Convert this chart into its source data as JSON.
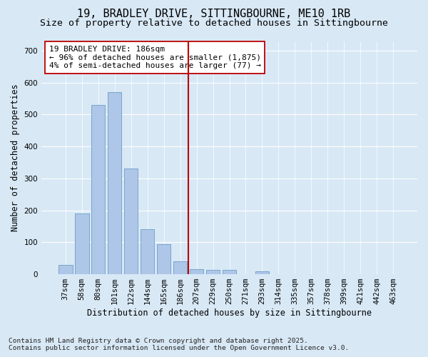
{
  "title_line1": "19, BRADLEY DRIVE, SITTINGBOURNE, ME10 1RB",
  "title_line2": "Size of property relative to detached houses in Sittingbourne",
  "xlabel": "Distribution of detached houses by size in Sittingbourne",
  "ylabel": "Number of detached properties",
  "bar_labels": [
    "37sqm",
    "58sqm",
    "80sqm",
    "101sqm",
    "122sqm",
    "144sqm",
    "165sqm",
    "186sqm",
    "207sqm",
    "229sqm",
    "250sqm",
    "271sqm",
    "293sqm",
    "314sqm",
    "335sqm",
    "357sqm",
    "378sqm",
    "399sqm",
    "421sqm",
    "442sqm",
    "463sqm"
  ],
  "bar_values": [
    30,
    190,
    530,
    570,
    330,
    140,
    95,
    40,
    15,
    14,
    14,
    0,
    10,
    0,
    0,
    0,
    0,
    0,
    0,
    0,
    0
  ],
  "bar_color": "#aec6e8",
  "bar_edge_color": "#6a9fc8",
  "reference_bar_index": 7,
  "reference_line_color": "#bb0000",
  "annotation_line1": "19 BRADLEY DRIVE: 186sqm",
  "annotation_line2": "← 96% of detached houses are smaller (1,875)",
  "annotation_line3": "4% of semi-detached houses are larger (77) →",
  "annotation_box_edge_color": "#bb0000",
  "ylim": [
    0,
    730
  ],
  "yticks": [
    0,
    100,
    200,
    300,
    400,
    500,
    600,
    700
  ],
  "bg_color": "#d8e8f5",
  "footer_line1": "Contains HM Land Registry data © Crown copyright and database right 2025.",
  "footer_line2": "Contains public sector information licensed under the Open Government Licence v3.0.",
  "title_fontsize": 11,
  "subtitle_fontsize": 9.5,
  "axis_label_fontsize": 8.5,
  "tick_fontsize": 7.5,
  "annotation_fontsize": 8,
  "footer_fontsize": 6.8
}
